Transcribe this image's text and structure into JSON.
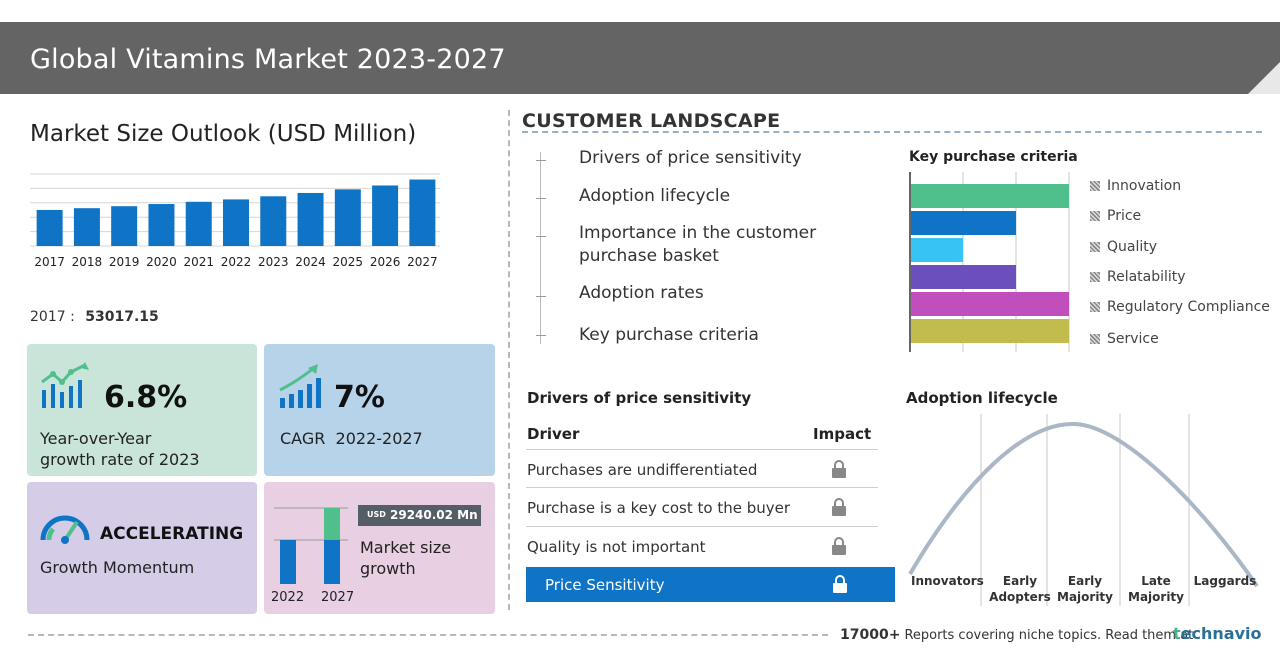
{
  "header": {
    "title": "Global Vitamins Market 2023-2027"
  },
  "market_size": {
    "title": "Market Size Outlook (USD Million)",
    "base_year": "2017",
    "base_value": "53017.15"
  },
  "cards": {
    "yoy": {
      "value": "6.8%",
      "label_line1": "Year-over-Year",
      "label_line2": "growth rate of 2023"
    },
    "cagr": {
      "value": "7%",
      "label": "CAGR  2022-2027"
    },
    "momentum": {
      "value": "ACCELERATING",
      "label": "Growth Momentum"
    },
    "growth": {
      "badge_currency": "USD",
      "badge_value": "29240.02 Mn",
      "label_line1": "Market size",
      "label_line2": "growth",
      "year_start": "2022",
      "year_end": "2027"
    }
  },
  "customer_landscape": {
    "title": "CUSTOMER LANDSCAPE",
    "items": [
      {
        "label": "Drivers of price sensitivity"
      },
      {
        "label": "Adoption lifecycle"
      },
      {
        "label": "Importance in the customer purchase basket"
      },
      {
        "label": "Adoption rates"
      },
      {
        "label": "Key purchase criteria"
      }
    ]
  },
  "key_purchase_criteria": {
    "title": "Key purchase criteria",
    "items": [
      "Innovation",
      "Price",
      "Quality",
      "Relatability",
      "Regulatory Compliance",
      "Service"
    ]
  },
  "price_sensitivity": {
    "title": "Drivers of price sensitivity",
    "col_driver": "Driver",
    "col_impact": "Impact",
    "rows": [
      {
        "driver": "Purchases are undifferentiated"
      },
      {
        "driver": "Purchase is a key cost to the buyer"
      },
      {
        "driver": "Quality is not important"
      }
    ],
    "summary": "Price Sensitivity"
  },
  "adoption_lifecycle": {
    "title": "Adoption lifecycle",
    "stages": [
      {
        "line1": "",
        "line2": "Innovators"
      },
      {
        "line1": "Early",
        "line2": "Adopters"
      },
      {
        "line1": "Early",
        "line2": "Majority"
      },
      {
        "line1": "Late",
        "line2": "Majority"
      },
      {
        "line1": "",
        "line2": "Laggards"
      }
    ]
  },
  "footer": {
    "count": "17000+",
    "text": "Reports covering niche topics. Read them at",
    "brand_t": "t",
    "brand_rest": "echnavio"
  },
  "colors": {
    "bar_blue": "#0f73c6",
    "bar_green": "#4fbf8c",
    "kpc": [
      "#4fbf8c",
      "#0f73c6",
      "#38c3f5",
      "#6a4fbd",
      "#c04fbd",
      "#c2bc4f"
    ]
  },
  "chart_data": [
    {
      "type": "bar",
      "title": "Market Size Outlook (USD Million)",
      "categories": [
        "2017",
        "2018",
        "2019",
        "2020",
        "2021",
        "2022",
        "2023",
        "2024",
        "2025",
        "2026",
        "2027"
      ],
      "values": [
        53017.15,
        55600,
        58500,
        61700,
        65000,
        68500,
        73100,
        78000,
        83300,
        89000,
        97740
      ],
      "ylim": [
        0,
        100000
      ],
      "grid": true
    },
    {
      "type": "bar",
      "title": "Key purchase criteria",
      "categories": [
        "Innovation",
        "Price",
        "Quality",
        "Relatability",
        "Regulatory Compliance",
        "Service"
      ],
      "values": [
        3,
        2,
        1,
        2,
        3,
        3
      ],
      "xlim": [
        0,
        3
      ],
      "orientation": "horizontal"
    }
  ]
}
